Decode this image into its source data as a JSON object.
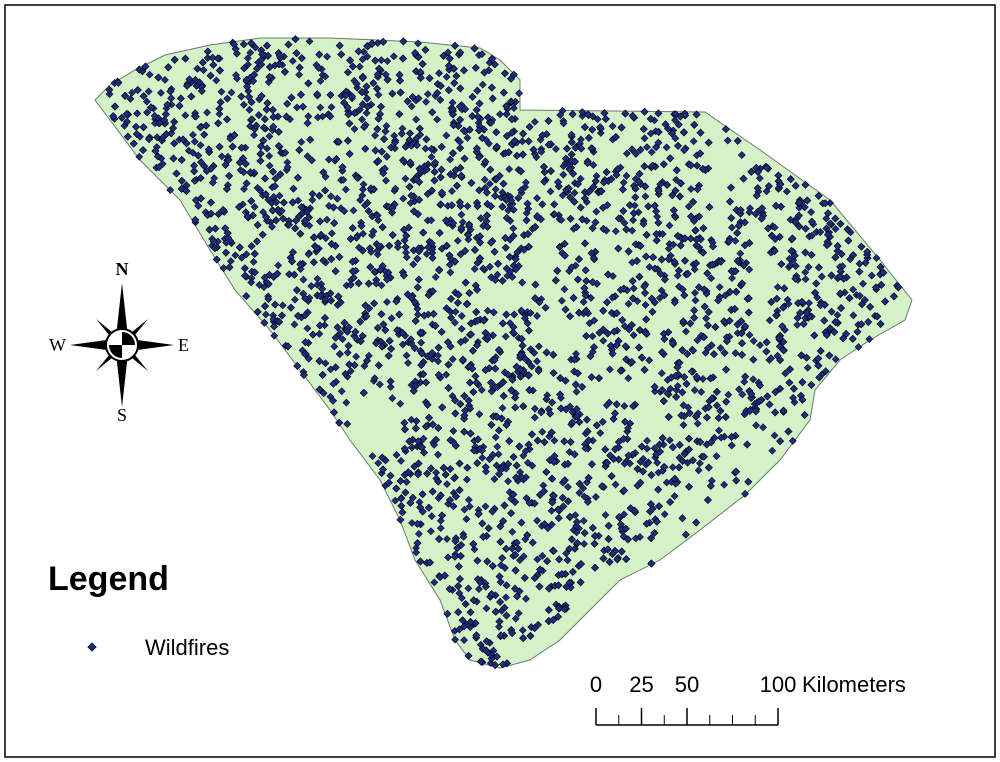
{
  "compass": {
    "north": "N",
    "south": "S",
    "east": "E",
    "west": "W"
  },
  "legend": {
    "title": "Legend",
    "items": [
      {
        "label": "Wildfires"
      }
    ]
  },
  "scale_bar": {
    "ticks": [
      0,
      25,
      50,
      100
    ],
    "unit": "Kilometers"
  }
}
